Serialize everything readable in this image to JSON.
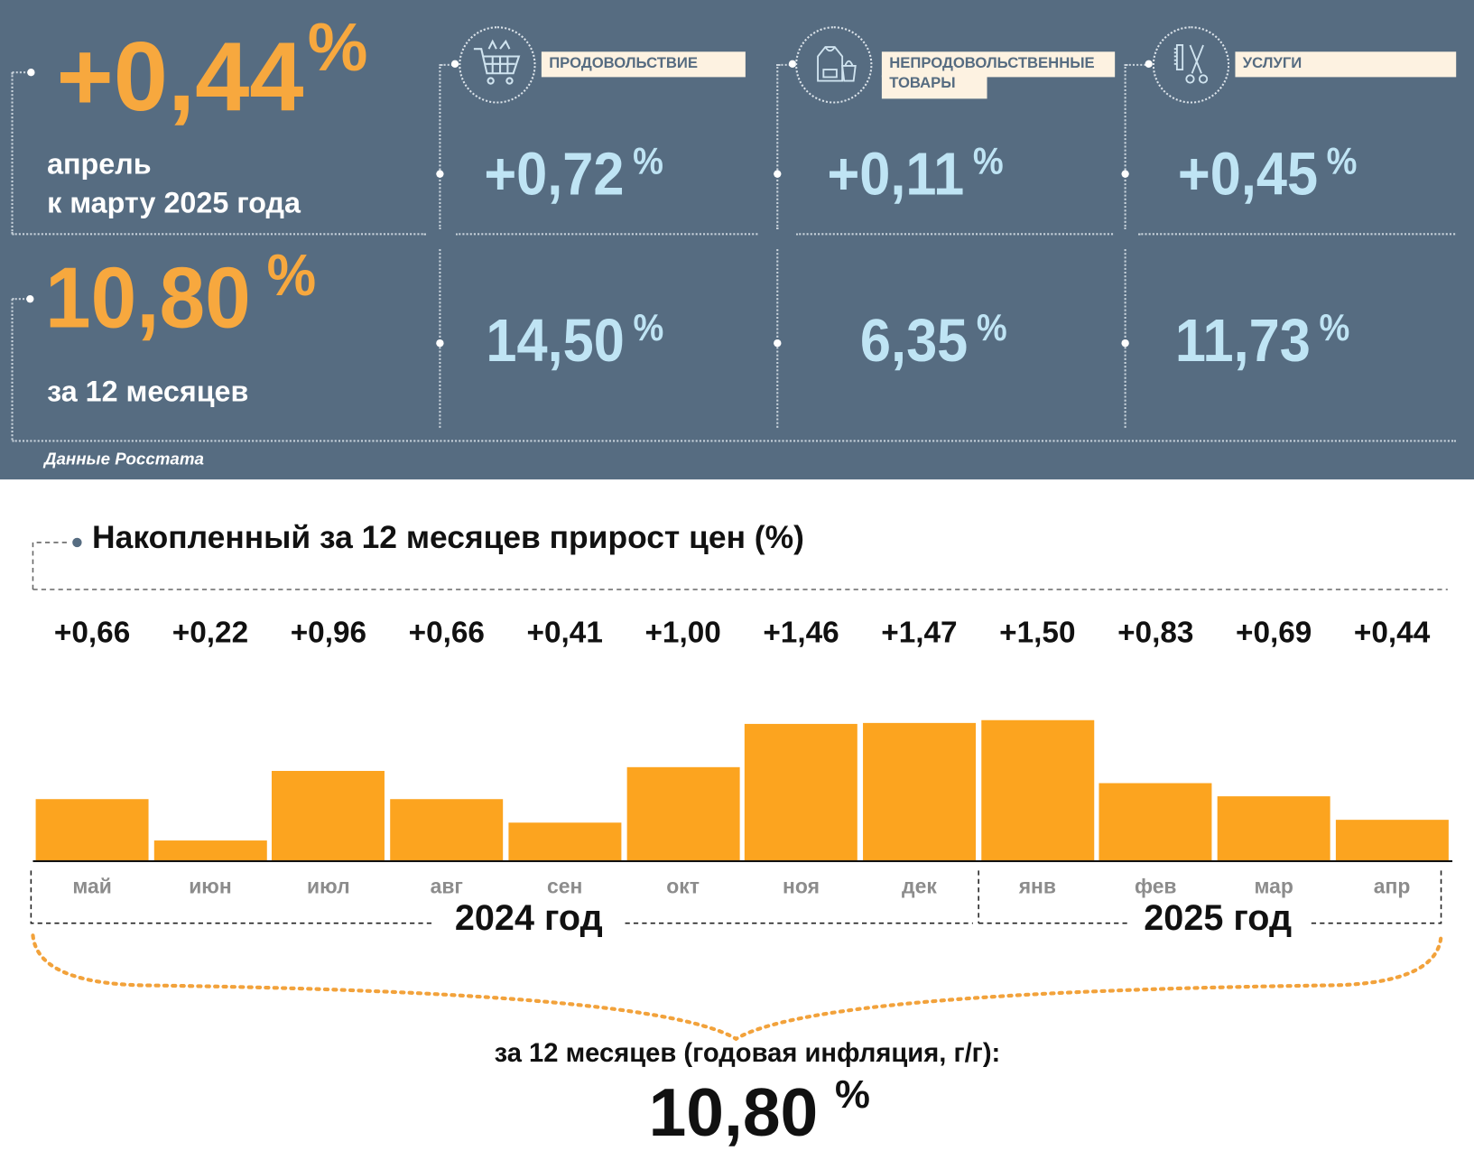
{
  "summary": {
    "monthly_value": "+0,44",
    "monthly_label_line1": "апрель",
    "monthly_label_line2": "к марту 2025 года",
    "annual_value": "10,80",
    "annual_label": "за 12 месяцев",
    "percent": "%",
    "source": "Данные Росстата"
  },
  "categories": [
    {
      "label": "ПРОДОВОЛЬСТВИЕ",
      "label2": "",
      "icon": "shopping-cart-icon",
      "monthly": "+0,72",
      "annual": "14,50"
    },
    {
      "label": "НЕПРОДОВОЛЬСТВЕННЫЕ",
      "label2": "ТОВАРЫ",
      "icon": "clothing-bag-icon",
      "monthly": "+0,11",
      "annual": "6,35"
    },
    {
      "label": "УСЛУГИ",
      "label2": "",
      "icon": "comb-scissors-icon",
      "monthly": "+0,45",
      "annual": "11,73"
    }
  ],
  "chart_data": {
    "type": "bar",
    "title": "Накопленный за 12 месяцев прирост цен (%)",
    "categories": [
      "май",
      "июн",
      "июл",
      "авг",
      "сен",
      "окт",
      "ноя",
      "дек",
      "янв",
      "фев",
      "мар",
      "апр"
    ],
    "values": [
      0.66,
      0.22,
      0.96,
      0.66,
      0.41,
      1.0,
      1.46,
      1.47,
      1.5,
      0.83,
      0.69,
      0.44
    ],
    "value_labels": [
      "+0,66",
      "+0,22",
      "+0,96",
      "+0,66",
      "+0,41",
      "+1,00",
      "+1,46",
      "+1,47",
      "+1,50",
      "+0,83",
      "+0,69",
      "+0,44"
    ],
    "year_groups": [
      "2024 год",
      "2025 год"
    ],
    "ylim": [
      0,
      1.6
    ],
    "bar_color": "#fca41f",
    "total_label": "за 12 месяцев (годовая инфляция, г/г):",
    "total_value": "10,80",
    "total_percent": "%"
  }
}
